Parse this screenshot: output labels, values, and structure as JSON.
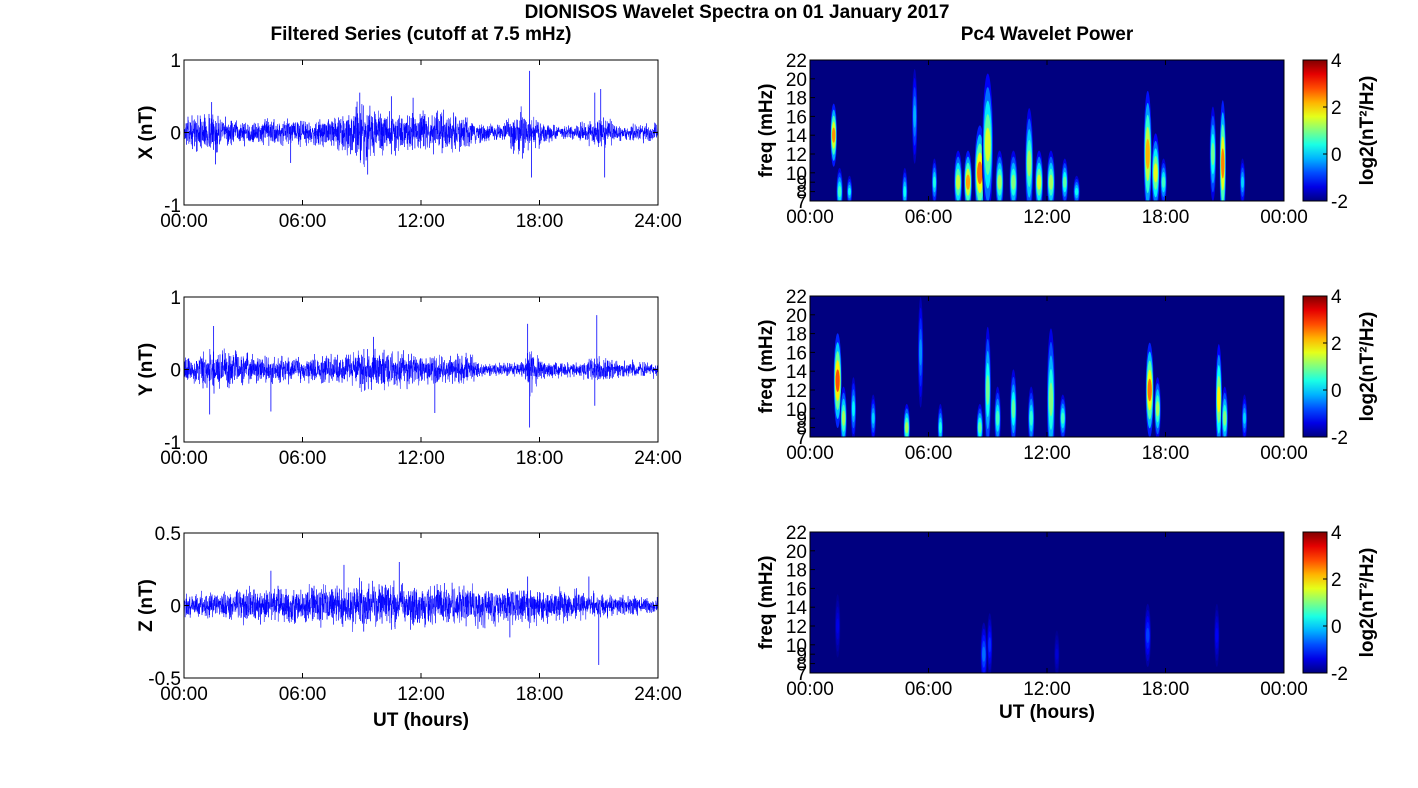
{
  "figure_title": "DIONISOS Wavelet Spectra on 01 January 2017",
  "chart_data": [
    {
      "type": "line",
      "id": "x",
      "title": "Filtered Series (cutoff at 7.5 mHz)",
      "xlabel": "",
      "ylabel": "X (nT)",
      "xlim": [
        0,
        24
      ],
      "ylim": [
        -1,
        1
      ],
      "xticklabels": [
        "00:00",
        "06:00",
        "12:00",
        "18:00",
        "24:00"
      ],
      "yticks": [
        "-1",
        "0",
        "1"
      ],
      "ytick_values": [
        -1,
        0,
        1
      ],
      "line_color": "#0000ff",
      "noise_profile": [
        {
          "t": 0,
          "a": 0.12
        },
        {
          "t": 1.3,
          "a": 0.2
        },
        {
          "t": 2,
          "a": 0.14
        },
        {
          "t": 3,
          "a": 0.1
        },
        {
          "t": 4,
          "a": 0.12
        },
        {
          "t": 5,
          "a": 0.14
        },
        {
          "t": 6,
          "a": 0.12
        },
        {
          "t": 7,
          "a": 0.12
        },
        {
          "t": 8,
          "a": 0.2
        },
        {
          "t": 9,
          "a": 0.32
        },
        {
          "t": 10,
          "a": 0.22
        },
        {
          "t": 11,
          "a": 0.2
        },
        {
          "t": 12,
          "a": 0.18
        },
        {
          "t": 13,
          "a": 0.2
        },
        {
          "t": 14,
          "a": 0.18
        },
        {
          "t": 15,
          "a": 0.1
        },
        {
          "t": 16,
          "a": 0.08
        },
        {
          "t": 17,
          "a": 0.22
        },
        {
          "t": 18,
          "a": 0.12
        },
        {
          "t": 19,
          "a": 0.06
        },
        {
          "t": 20,
          "a": 0.08
        },
        {
          "t": 21,
          "a": 0.14
        },
        {
          "t": 22,
          "a": 0.08
        },
        {
          "t": 24,
          "a": 0.08
        }
      ],
      "spikes": [
        {
          "t": 1.4,
          "v": 0.42
        },
        {
          "t": 1.6,
          "v": -0.44
        },
        {
          "t": 5.4,
          "v": -0.42
        },
        {
          "t": 8.9,
          "v": 0.55
        },
        {
          "t": 9.3,
          "v": -0.58
        },
        {
          "t": 10.5,
          "v": 0.5
        },
        {
          "t": 11.6,
          "v": 0.48
        },
        {
          "t": 17.5,
          "v": 0.85
        },
        {
          "t": 17.6,
          "v": -0.62
        },
        {
          "t": 20.8,
          "v": 0.55
        },
        {
          "t": 21.1,
          "v": 0.6
        },
        {
          "t": 21.3,
          "v": -0.62
        }
      ]
    },
    {
      "type": "line",
      "id": "y",
      "title": "",
      "xlabel": "",
      "ylabel": "Y (nT)",
      "xlim": [
        0,
        24
      ],
      "ylim": [
        -1,
        1
      ],
      "xticklabels": [
        "00:00",
        "06:00",
        "12:00",
        "18:00",
        "24:00"
      ],
      "yticks": [
        "-1",
        "0",
        "1"
      ],
      "ytick_values": [
        -1,
        0,
        1
      ],
      "line_color": "#0000ff",
      "noise_profile": [
        {
          "t": 0,
          "a": 0.1
        },
        {
          "t": 1.5,
          "a": 0.22
        },
        {
          "t": 2.5,
          "a": 0.16
        },
        {
          "t": 4,
          "a": 0.12
        },
        {
          "t": 5,
          "a": 0.14
        },
        {
          "t": 6,
          "a": 0.12
        },
        {
          "t": 8,
          "a": 0.14
        },
        {
          "t": 9.5,
          "a": 0.2
        },
        {
          "t": 11,
          "a": 0.16
        },
        {
          "t": 12,
          "a": 0.14
        },
        {
          "t": 13,
          "a": 0.12
        },
        {
          "t": 14.5,
          "a": 0.14
        },
        {
          "t": 15,
          "a": 0.06
        },
        {
          "t": 17,
          "a": 0.06
        },
        {
          "t": 17.5,
          "a": 0.2
        },
        {
          "t": 18,
          "a": 0.1
        },
        {
          "t": 20,
          "a": 0.06
        },
        {
          "t": 21,
          "a": 0.14
        },
        {
          "t": 22,
          "a": 0.08
        },
        {
          "t": 24,
          "a": 0.07
        }
      ],
      "spikes": [
        {
          "t": 1.5,
          "v": 0.6
        },
        {
          "t": 1.3,
          "v": -0.62
        },
        {
          "t": 4.4,
          "v": -0.58
        },
        {
          "t": 9.6,
          "v": 0.45
        },
        {
          "t": 12.7,
          "v": -0.6
        },
        {
          "t": 17.4,
          "v": 0.63
        },
        {
          "t": 17.5,
          "v": -0.8
        },
        {
          "t": 20.9,
          "v": 0.75
        },
        {
          "t": 20.8,
          "v": -0.5
        }
      ]
    },
    {
      "type": "line",
      "id": "z",
      "title": "",
      "xlabel": "UT (hours)",
      "ylabel": "Z (nT)",
      "xlim": [
        0,
        24
      ],
      "ylim": [
        -0.5,
        0.5
      ],
      "xticklabels": [
        "00:00",
        "06:00",
        "12:00",
        "18:00",
        "24:00"
      ],
      "yticks": [
        "-0.5",
        "0",
        "0.5"
      ],
      "ytick_values": [
        -0.5,
        0,
        0.5
      ],
      "line_color": "#0000ff",
      "noise_profile": [
        {
          "t": 0,
          "a": 0.05
        },
        {
          "t": 2,
          "a": 0.07
        },
        {
          "t": 5,
          "a": 0.08
        },
        {
          "t": 8,
          "a": 0.1
        },
        {
          "t": 9.5,
          "a": 0.11
        },
        {
          "t": 12,
          "a": 0.1
        },
        {
          "t": 15,
          "a": 0.1
        },
        {
          "t": 17,
          "a": 0.09
        },
        {
          "t": 19,
          "a": 0.08
        },
        {
          "t": 22,
          "a": 0.05
        },
        {
          "t": 24,
          "a": 0.04
        }
      ],
      "spikes": [
        {
          "t": 4.4,
          "v": 0.24
        },
        {
          "t": 8.1,
          "v": 0.28
        },
        {
          "t": 10.9,
          "v": 0.3
        },
        {
          "t": 9.1,
          "v": -0.18
        },
        {
          "t": 17.4,
          "v": 0.2
        },
        {
          "t": 16.5,
          "v": -0.22
        },
        {
          "t": 21,
          "v": -0.41
        },
        {
          "t": 20.5,
          "v": 0.2
        }
      ]
    },
    {
      "type": "heatmap",
      "id": "x_wavelet",
      "title": "Pc4 Wavelet Power",
      "xlabel": "",
      "ylabel": "freq (mHz)",
      "xlim": [
        0,
        24
      ],
      "ylim": [
        7,
        22
      ],
      "xticklabels": [
        "00:00",
        "06:00",
        "12:00",
        "18:00",
        "00:00"
      ],
      "yticks": [
        "7",
        "8",
        "9",
        "10",
        "12",
        "14",
        "16",
        "18",
        "20",
        "22"
      ],
      "ytick_values": [
        7,
        8,
        9,
        10,
        12,
        14,
        16,
        18,
        20,
        22
      ],
      "colorbar_label": "log2(nT²/Hz)",
      "colorbar_ticks": [
        "-2",
        "0",
        "2",
        "4"
      ],
      "colorbar_range": [
        -2,
        4
      ],
      "colormap": "jet",
      "background": -2,
      "streaks": [
        {
          "t": 1.2,
          "f": 14,
          "p": 2.4,
          "w": 0.12,
          "h": 4
        },
        {
          "t": 1.5,
          "f": 8,
          "p": 0.6,
          "w": 0.12,
          "h": 3
        },
        {
          "t": 2.0,
          "f": 8,
          "p": 0.2,
          "w": 0.1,
          "h": 2
        },
        {
          "t": 4.8,
          "f": 8,
          "p": 0.3,
          "w": 0.1,
          "h": 3
        },
        {
          "t": 5.3,
          "f": 16,
          "p": -0.2,
          "w": 0.1,
          "h": 6
        },
        {
          "t": 6.3,
          "f": 9,
          "p": 0.4,
          "w": 0.1,
          "h": 3
        },
        {
          "t": 7.5,
          "f": 9,
          "p": 1.4,
          "w": 0.15,
          "h": 4
        },
        {
          "t": 8.0,
          "f": 9,
          "p": 2.3,
          "w": 0.15,
          "h": 4
        },
        {
          "t": 8.6,
          "f": 10,
          "p": 2.6,
          "w": 0.2,
          "h": 6
        },
        {
          "t": 9.0,
          "f": 13,
          "p": 1.5,
          "w": 0.2,
          "h": 9
        },
        {
          "t": 9.6,
          "f": 9,
          "p": 1.2,
          "w": 0.15,
          "h": 4
        },
        {
          "t": 10.3,
          "f": 9,
          "p": 1.0,
          "w": 0.15,
          "h": 4
        },
        {
          "t": 11.1,
          "f": 11,
          "p": 1.2,
          "w": 0.15,
          "h": 7
        },
        {
          "t": 11.6,
          "f": 9,
          "p": 1.5,
          "w": 0.15,
          "h": 4
        },
        {
          "t": 12.2,
          "f": 9,
          "p": 1.2,
          "w": 0.15,
          "h": 4
        },
        {
          "t": 12.9,
          "f": 9,
          "p": 0.8,
          "w": 0.12,
          "h": 3
        },
        {
          "t": 13.5,
          "f": 8,
          "p": 0.3,
          "w": 0.12,
          "h": 2
        },
        {
          "t": 17.1,
          "f": 12,
          "p": 2.2,
          "w": 0.15,
          "h": 8
        },
        {
          "t": 17.5,
          "f": 10,
          "p": 1.6,
          "w": 0.15,
          "h": 5
        },
        {
          "t": 17.9,
          "f": 9,
          "p": 0.6,
          "w": 0.12,
          "h": 3
        },
        {
          "t": 20.4,
          "f": 12,
          "p": 0.9,
          "w": 0.12,
          "h": 6
        },
        {
          "t": 20.9,
          "f": 11,
          "p": 2.5,
          "w": 0.12,
          "h": 8
        },
        {
          "t": 21.9,
          "f": 9,
          "p": 0.0,
          "w": 0.1,
          "h": 3
        }
      ]
    },
    {
      "type": "heatmap",
      "id": "y_wavelet",
      "title": "",
      "xlabel": "",
      "ylabel": "freq (mHz)",
      "xlim": [
        0,
        24
      ],
      "ylim": [
        7,
        22
      ],
      "xticklabels": [
        "00:00",
        "06:00",
        "12:00",
        "18:00",
        "00:00"
      ],
      "yticks": [
        "7",
        "8",
        "9",
        "10",
        "12",
        "14",
        "16",
        "18",
        "20",
        "22"
      ],
      "ytick_values": [
        7,
        8,
        9,
        10,
        12,
        14,
        16,
        18,
        20,
        22
      ],
      "colorbar_label": "log2(nT²/Hz)",
      "colorbar_ticks": [
        "-2",
        "0",
        "2",
        "4"
      ],
      "colorbar_range": [
        -2,
        4
      ],
      "colormap": "jet",
      "background": -2,
      "streaks": [
        {
          "t": 1.4,
          "f": 13,
          "p": 2.8,
          "w": 0.15,
          "h": 6
        },
        {
          "t": 1.7,
          "f": 9,
          "p": 1.2,
          "w": 0.12,
          "h": 4
        },
        {
          "t": 2.2,
          "f": 10,
          "p": 0.2,
          "w": 0.1,
          "h": 4
        },
        {
          "t": 3.2,
          "f": 9,
          "p": 0.0,
          "w": 0.1,
          "h": 3
        },
        {
          "t": 4.9,
          "f": 8,
          "p": 1.2,
          "w": 0.12,
          "h": 3
        },
        {
          "t": 5.6,
          "f": 16,
          "p": -0.4,
          "w": 0.1,
          "h": 7
        },
        {
          "t": 6.6,
          "f": 8,
          "p": 0.4,
          "w": 0.1,
          "h": 3
        },
        {
          "t": 8.6,
          "f": 8,
          "p": 0.8,
          "w": 0.12,
          "h": 3
        },
        {
          "t": 9.0,
          "f": 12,
          "p": 0.9,
          "w": 0.12,
          "h": 8
        },
        {
          "t": 9.5,
          "f": 9,
          "p": 0.6,
          "w": 0.12,
          "h": 4
        },
        {
          "t": 10.3,
          "f": 10,
          "p": 0.8,
          "w": 0.12,
          "h": 5
        },
        {
          "t": 11.2,
          "f": 9,
          "p": 0.5,
          "w": 0.12,
          "h": 4
        },
        {
          "t": 12.2,
          "f": 11,
          "p": 1.0,
          "w": 0.15,
          "h": 9
        },
        {
          "t": 12.8,
          "f": 9,
          "p": 0.6,
          "w": 0.12,
          "h": 3
        },
        {
          "t": 17.2,
          "f": 12,
          "p": 2.6,
          "w": 0.15,
          "h": 6
        },
        {
          "t": 17.6,
          "f": 10,
          "p": 1.2,
          "w": 0.12,
          "h": 4
        },
        {
          "t": 20.7,
          "f": 11,
          "p": 1.8,
          "w": 0.12,
          "h": 7
        },
        {
          "t": 21.0,
          "f": 9,
          "p": 1.0,
          "w": 0.12,
          "h": 4
        },
        {
          "t": 22.0,
          "f": 9,
          "p": 0.0,
          "w": 0.1,
          "h": 3
        }
      ]
    },
    {
      "type": "heatmap",
      "id": "z_wavelet",
      "title": "",
      "xlabel": "UT (hours)",
      "ylabel": "freq (mHz)",
      "xlim": [
        0,
        24
      ],
      "ylim": [
        7,
        22
      ],
      "xticklabels": [
        "00:00",
        "06:00",
        "12:00",
        "18:00",
        "00:00"
      ],
      "yticks": [
        "7",
        "8",
        "9",
        "10",
        "12",
        "14",
        "16",
        "18",
        "20",
        "22"
      ],
      "ytick_values": [
        7,
        8,
        9,
        10,
        12,
        14,
        16,
        18,
        20,
        22
      ],
      "colorbar_label": "log2(nT²/Hz)",
      "colorbar_ticks": [
        "-2",
        "0",
        "2",
        "4"
      ],
      "colorbar_range": [
        -2,
        4
      ],
      "colormap": "jet",
      "background": -2,
      "streaks": [
        {
          "t": 1.4,
          "f": 12,
          "p": -1.4,
          "w": 0.1,
          "h": 4
        },
        {
          "t": 8.8,
          "f": 9,
          "p": -0.6,
          "w": 0.12,
          "h": 4
        },
        {
          "t": 9.1,
          "f": 10,
          "p": -1.0,
          "w": 0.1,
          "h": 4
        },
        {
          "t": 17.1,
          "f": 11,
          "p": -0.9,
          "w": 0.12,
          "h": 4
        },
        {
          "t": 20.6,
          "f": 11,
          "p": -1.3,
          "w": 0.1,
          "h": 4
        },
        {
          "t": 12.5,
          "f": 9,
          "p": -1.5,
          "w": 0.1,
          "h": 3
        }
      ]
    }
  ]
}
